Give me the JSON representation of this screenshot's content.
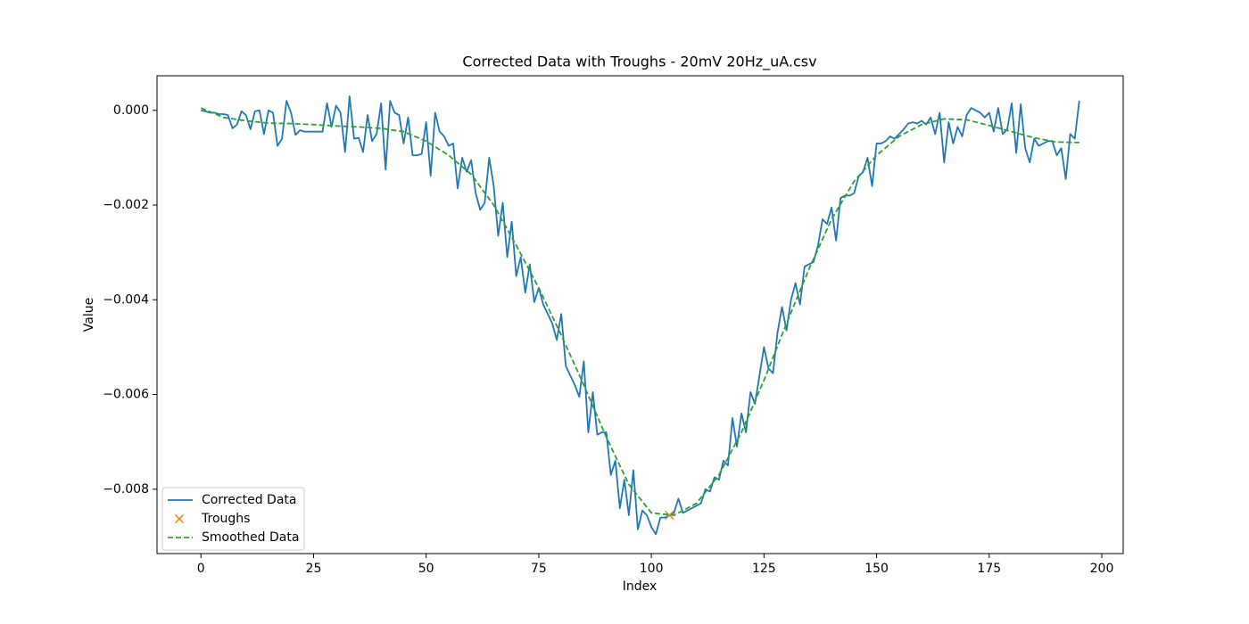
{
  "chart_data": {
    "type": "line",
    "title": "Corrected Data with Troughs - 20mV 20Hz_uA.csv",
    "xlabel": "Index",
    "ylabel": "Value",
    "xlim": [
      -9.75,
      204.75
    ],
    "xticks": [
      0,
      25,
      50,
      75,
      100,
      125,
      150,
      175,
      200
    ],
    "ylim": [
      -0.00936,
      0.00073
    ],
    "yticks": [
      {
        "value": -0.008,
        "label": "−0.008"
      },
      {
        "value": -0.006,
        "label": "−0.006"
      },
      {
        "value": -0.004,
        "label": "−0.004"
      },
      {
        "value": -0.002,
        "label": "−0.002"
      },
      {
        "value": 0,
        "label": "0.000"
      }
    ],
    "legend": "lower left",
    "series": [
      {
        "name": "Corrected Data",
        "color": "#1f77b4",
        "style": "solid",
        "values": [
          0,
          -2e-05,
          -5e-05,
          -5e-05,
          -8e-05,
          -8e-05,
          -0.0001,
          -0.00038,
          -0.0003,
          -2e-05,
          -0.0001,
          -0.0004,
          -2e-05,
          0,
          -0.0005,
          0,
          -5e-05,
          -0.00075,
          -0.0006,
          0.0002,
          -5e-05,
          -0.00052,
          -0.00042,
          -0.00045,
          -0.00045,
          -0.00045,
          -0.00045,
          -0.00045,
          0.00015,
          -0.00035,
          0.0001,
          -5e-05,
          -0.00088,
          0.0003,
          -0.0006,
          -0.00058,
          -0.00088,
          -0.0001,
          -0.00065,
          -0.0005,
          0.00015,
          -0.00125,
          0.0002,
          -5e-05,
          -0.0001,
          -0.0007,
          -0.00015,
          -0.00095,
          -0.00095,
          -0.00092,
          -0.00025,
          -0.00138,
          -5e-05,
          -0.00045,
          -0.00055,
          -0.00075,
          -0.0007,
          -0.00165,
          -0.001,
          -0.0013,
          -0.00105,
          -0.00175,
          -0.0021,
          -0.00195,
          -0.001,
          -0.0016,
          -0.00265,
          -0.00195,
          -0.0031,
          -0.00235,
          -0.0035,
          -0.0031,
          -0.00385,
          -0.00325,
          -0.00405,
          -0.00375,
          -0.0041,
          -0.0043,
          -0.0045,
          -0.00485,
          -0.0043,
          -0.0054,
          -0.0056,
          -0.0058,
          -0.00605,
          -0.0053,
          -0.0068,
          -0.00595,
          -0.00685,
          -0.0068,
          -0.0068,
          -0.0077,
          -0.0074,
          -0.0084,
          -0.0078,
          -0.00855,
          -0.0076,
          -0.00885,
          -0.00845,
          -0.00855,
          -0.0088,
          -0.00895,
          -0.0086,
          -0.0086,
          -0.00855,
          -0.0085,
          -0.0082,
          -0.0085,
          -0.00845,
          -0.0084,
          -0.00835,
          -0.0083,
          -0.008,
          -0.00805,
          -0.00775,
          -0.0078,
          -0.0074,
          -0.0075,
          -0.0065,
          -0.0071,
          -0.0064,
          -0.0068,
          -0.00595,
          -0.0062,
          -0.0056,
          -0.005,
          -0.00545,
          -0.00555,
          -0.0047,
          -0.00415,
          -0.00465,
          -0.004,
          -0.00365,
          -0.0041,
          -0.0033,
          -0.00325,
          -0.0032,
          -0.00285,
          -0.0023,
          -0.0024,
          -0.00205,
          -0.00275,
          -0.00185,
          -0.0018,
          -0.0018,
          -0.00175,
          -0.0014,
          -0.0013,
          -0.001,
          -0.0016,
          -0.0007,
          -0.0007,
          -0.00065,
          -0.00055,
          -0.0006,
          -0.0005,
          -0.0004,
          -0.00028,
          -0.00025,
          -0.00028,
          -0.00022,
          -0.0003,
          -0.00015,
          -0.0005,
          -5e-05,
          -0.0011,
          -0.00025,
          -0.0007,
          -0.00035,
          -0.00055,
          -0.0001,
          5e-05,
          0,
          -5e-05,
          -0.00015,
          -5e-05,
          -0.00045,
          5e-05,
          -0.0005,
          -0.0004,
          0.00015,
          -0.0009,
          0.00013,
          -0.0008,
          -0.0011,
          -0.0006,
          -0.00075,
          -0.0007,
          -0.00065,
          -0.00065,
          -0.00095,
          -0.0008,
          -0.00145,
          -0.0005,
          -0.0006,
          0.0002
        ]
      },
      {
        "name": "Troughs",
        "color": "#ff7f0e",
        "style": "x",
        "x": [
          104
        ],
        "values": [
          -0.00855
        ]
      },
      {
        "name": "Smoothed Data",
        "color": "#2ca02c",
        "style": "dashed",
        "x": [
          0,
          5,
          10,
          15,
          20,
          25,
          30,
          35,
          40,
          45,
          50,
          55,
          60,
          65,
          70,
          75,
          80,
          85,
          90,
          95,
          100,
          105,
          110,
          115,
          120,
          125,
          130,
          135,
          140,
          145,
          150,
          155,
          160,
          165,
          170,
          175,
          180,
          185,
          190,
          195
        ],
        "values": [
          5e-05,
          -0.00015,
          -0.00022,
          -0.00027,
          -0.00028,
          -0.0003,
          -0.00033,
          -0.00035,
          -0.00038,
          -0.00045,
          -0.00065,
          -0.00095,
          -0.00135,
          -0.002,
          -0.00285,
          -0.00375,
          -0.00475,
          -0.0058,
          -0.0069,
          -0.0079,
          -0.0085,
          -0.00855,
          -0.0083,
          -0.0077,
          -0.0068,
          -0.0057,
          -0.0045,
          -0.00335,
          -0.0023,
          -0.0015,
          -0.00095,
          -0.00055,
          -0.0003,
          -0.00018,
          -0.0002,
          -0.00032,
          -0.00045,
          -0.00058,
          -0.00067,
          -0.00068
        ]
      }
    ]
  }
}
